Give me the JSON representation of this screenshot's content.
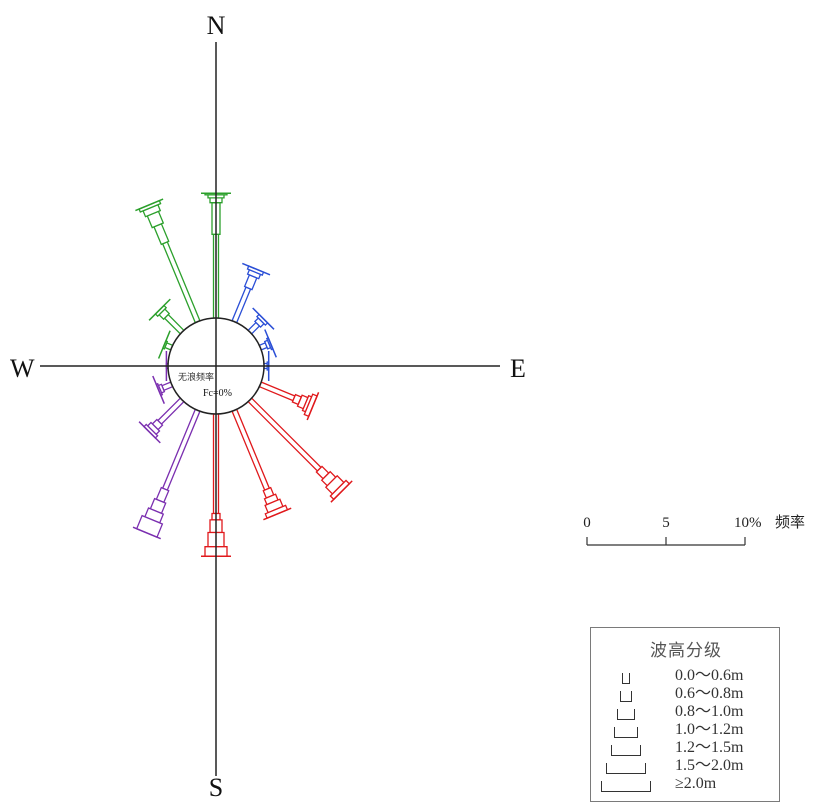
{
  "chart_data": {
    "type": "wave-rose",
    "directions": [
      "N",
      "NNE",
      "NE",
      "ENE",
      "E",
      "ESE",
      "SE",
      "SSE",
      "S",
      "SSW",
      "SW",
      "WSW",
      "W",
      "WNW",
      "NW",
      "NNW"
    ],
    "cardinal_labels": {
      "north": "N",
      "east": "E",
      "south": "S",
      "west": "W"
    },
    "center_text": {
      "line1": "无浪频率",
      "line2": "Fc=0%"
    },
    "calm_frequency_percent": 0,
    "classes": [
      "0.0～0.6m",
      "0.6～0.8m",
      "0.8～1.0m",
      "1.0～1.2m",
      "1.2～1.5m",
      "1.5～2.0m",
      "≥2.0m"
    ],
    "frequency_percent_by_class": {
      "N": [
        0,
        5.3,
        2.0,
        0.3,
        0.2,
        0.1,
        0
      ],
      "NNE": [
        0,
        2.3,
        0.8,
        0.3,
        0.2,
        0,
        0
      ],
      "NE": [
        0,
        0.7,
        0.3,
        0.2,
        0,
        0,
        0
      ],
      "ENE": [
        0,
        0.4,
        0.2,
        0.1,
        0,
        0,
        0
      ],
      "E": [
        0,
        0.2,
        0.1,
        0,
        0,
        0,
        0
      ],
      "ESE": [
        0,
        2.3,
        0.4,
        0.4,
        0.2,
        0.3,
        0
      ],
      "SE": [
        0,
        6.2,
        0.6,
        0.5,
        0.6,
        0.3,
        0
      ],
      "SSE": [
        0,
        5.4,
        0.5,
        0.4,
        0.5,
        0.3,
        0
      ],
      "S": [
        0,
        6.3,
        0.4,
        0.8,
        0.9,
        0.6,
        0
      ],
      "SSW": [
        0,
        5.4,
        0.8,
        0.7,
        0.6,
        0.9,
        0
      ],
      "SW": [
        0,
        2.0,
        0.4,
        0.3,
        0.2,
        0,
        0
      ],
      "WSW": [
        0,
        0.6,
        0.2,
        0.1,
        0,
        0,
        0
      ],
      "W": [
        0,
        0.1,
        0,
        0,
        0,
        0,
        0
      ],
      "WNW": [
        0,
        0.4,
        0.1,
        0,
        0,
        0,
        0
      ],
      "NW": [
        0,
        1.4,
        0.4,
        0.2,
        0,
        0,
        0
      ],
      "NNW": [
        0,
        5.4,
        1.2,
        0.8,
        0.4,
        0.2,
        0
      ]
    },
    "scale": {
      "ticks": [
        "0",
        "5",
        "10%"
      ],
      "max_percent": 10,
      "unit_label": "频率"
    },
    "legend": {
      "title": "波高分级",
      "placement": "bottom-right"
    },
    "colors": {
      "N": "#2ca02c",
      "NNE": "#2b4fd6",
      "NE": "#2b4fd6",
      "ENE": "#2b4fd6",
      "E": "#2b4fd6",
      "ESE": "#e0191c",
      "SE": "#e0191c",
      "SSE": "#e0191c",
      "S": "#e0191c",
      "SSW": "#7b2fb0",
      "SW": "#7b2fb0",
      "WSW": "#7b2fb0",
      "W": "#7b2fb0",
      "WNW": "#2ca02c",
      "NW": "#2ca02c",
      "NNW": "#2ca02c",
      "axis": "#222222"
    }
  }
}
